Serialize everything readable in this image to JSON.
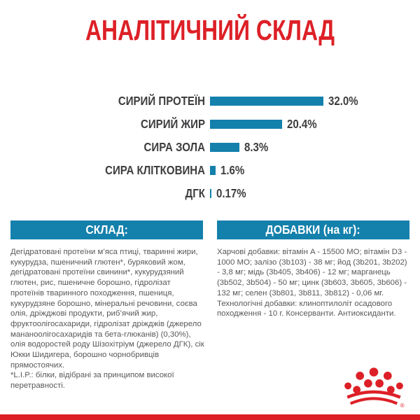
{
  "title": "АНАЛІТИЧНИЙ СКЛАД",
  "chart_data": {
    "type": "bar",
    "orientation": "horizontal",
    "title": "АНАЛІТИЧНИЙ СКЛАД",
    "categories": [
      "СИРИЙ ПРОТЕЇН",
      "СИРИЙ ЖИР",
      "СИРА ЗОЛА",
      "СИРА КЛІТКОВИНА",
      "ДГК"
    ],
    "values": [
      32.0,
      20.4,
      8.3,
      1.6,
      0.17
    ],
    "value_labels": [
      "32.0%",
      "20.4%",
      "8.3%",
      "1.6%",
      "0.17%"
    ],
    "unit": "%",
    "xlim": [
      0,
      35
    ],
    "grid": false,
    "legend": false,
    "bar_color": "#1480AC",
    "label_color": "#3E3E40"
  },
  "sections": {
    "composition": {
      "header": "СКЛАД:",
      "body": "Дегідратовані протеїни м’яса птиці, тваринні жири, кукурудза, пшеничний глютен*, буряковий жом, дегідратовані протеїни свинини*, кукурудзяний глютен, рис, пшеничне борошно, гідролізат протеїнів тваринного походження, пшениця, кукурудзяне борошно, мінеральні речовини, соєва олія, дріжджові продукти, риб’ячий жир, фруктоолігосахариди, гідролізат дріжджів (джерело мананоолігосахаридів та бета-глюканів) (0,30%), олія водоростей роду Шізохітріум (джерело ДГК), сік Юкки Шидигера, борошно чорнобривців прямостоячих.",
      "footnote": "*L.I.P.: білки, відібрані за принципом високої перетравності."
    },
    "additives": {
      "header": "ДОБАВКИ (на кг):",
      "body": "Харчові добавки: вітамін A - 15500 МО; вітамін D3 - 1000 МО; залізо (3b103) - 38 мг; йод (3b201, 3b202) - 3,8 мг; мідь (3b405, 3b406) - 12 мг; марганець (3b502, 3b504) - 50 мг; цинк (3b603, 3b605, 3b606) - 132 мг; селен (3b801, 3b811, 3b812) - 0,06 мг. Технологічні добавки: клиноптилоліт осадового походження - 10 г. Консерванти. Антиоксиданти."
    }
  },
  "brand": {
    "logo_name": "royal-canin-crown",
    "registered_mark": "®"
  },
  "colors": {
    "red": "#DD2027",
    "teal": "#1480AC",
    "header_text": "#FFFFFF",
    "body_text": "#57585A",
    "label_text": "#3E3E40"
  }
}
